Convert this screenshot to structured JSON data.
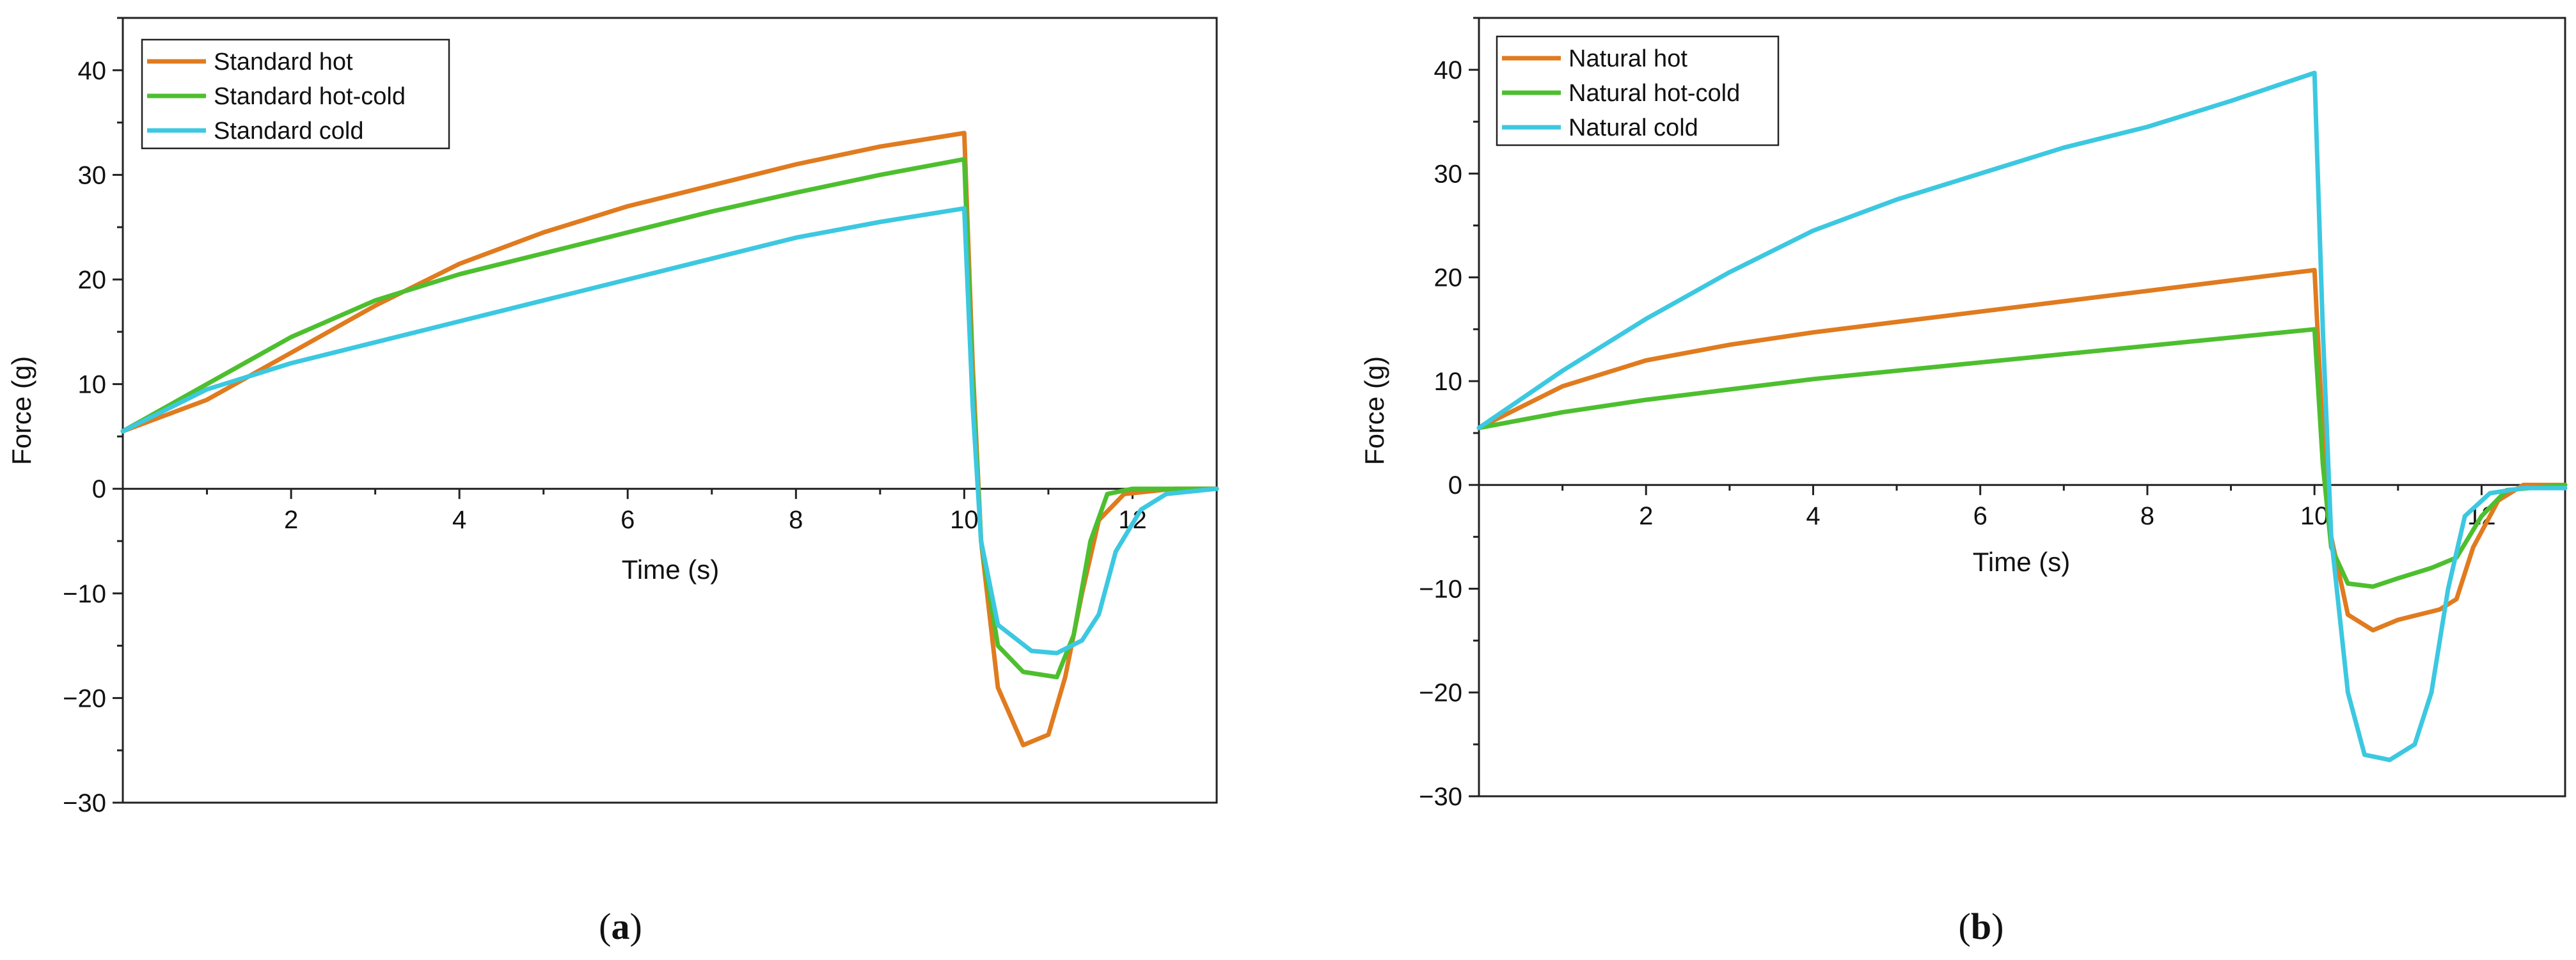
{
  "chart_data": [
    {
      "type": "line",
      "panel": "a",
      "panel_label": {
        "open": "(",
        "letter": "a",
        "close": ")"
      },
      "xlabel": "Time (s)",
      "ylabel": "Force (g)",
      "xlim": [
        0,
        13
      ],
      "ylim": [
        -30,
        45
      ],
      "x_ticks": [
        2,
        4,
        6,
        8,
        10,
        12
      ],
      "y_ticks": [
        -30,
        -20,
        -10,
        0,
        10,
        20,
        30,
        40
      ],
      "legend_position": "top-left",
      "series": [
        {
          "name": "Standard hot",
          "color": "#E07B1F",
          "points": [
            [
              0,
              5.5
            ],
            [
              1,
              8.5
            ],
            [
              2,
              13
            ],
            [
              3,
              17.5
            ],
            [
              4,
              21.5
            ],
            [
              5,
              24.5
            ],
            [
              6,
              27
            ],
            [
              7,
              29
            ],
            [
              8,
              31
            ],
            [
              9,
              32.7
            ],
            [
              10,
              34
            ],
            [
              10.1,
              12
            ],
            [
              10.2,
              -5
            ],
            [
              10.4,
              -19
            ],
            [
              10.7,
              -24.5
            ],
            [
              11,
              -23.5
            ],
            [
              11.2,
              -18
            ],
            [
              11.4,
              -10
            ],
            [
              11.6,
              -3
            ],
            [
              11.9,
              -0.5
            ],
            [
              12.5,
              0
            ],
            [
              13,
              0
            ]
          ]
        },
        {
          "name": "Standard hot-cold",
          "color": "#4DBF2F",
          "points": [
            [
              0,
              5.5
            ],
            [
              1,
              10
            ],
            [
              2,
              14.5
            ],
            [
              3,
              18
            ],
            [
              4,
              20.5
            ],
            [
              5,
              22.5
            ],
            [
              6,
              24.5
            ],
            [
              7,
              26.5
            ],
            [
              8,
              28.3
            ],
            [
              9,
              30
            ],
            [
              10,
              31.5
            ],
            [
              10.1,
              10
            ],
            [
              10.2,
              -5
            ],
            [
              10.4,
              -15
            ],
            [
              10.7,
              -17.5
            ],
            [
              11.1,
              -18
            ],
            [
              11.3,
              -14
            ],
            [
              11.5,
              -5
            ],
            [
              11.7,
              -0.5
            ],
            [
              12,
              0
            ],
            [
              13,
              0
            ]
          ]
        },
        {
          "name": "Standard cold",
          "color": "#3CC8E0",
          "points": [
            [
              0,
              5.5
            ],
            [
              1,
              9.5
            ],
            [
              2,
              12
            ],
            [
              3,
              14
            ],
            [
              4,
              16
            ],
            [
              5,
              18
            ],
            [
              6,
              20
            ],
            [
              7,
              22
            ],
            [
              8,
              24
            ],
            [
              9,
              25.5
            ],
            [
              10,
              26.8
            ],
            [
              10.1,
              8
            ],
            [
              10.2,
              -5
            ],
            [
              10.4,
              -13
            ],
            [
              10.8,
              -15.5
            ],
            [
              11.1,
              -15.7
            ],
            [
              11.4,
              -14.5
            ],
            [
              11.6,
              -12
            ],
            [
              11.8,
              -6
            ],
            [
              12.1,
              -2
            ],
            [
              12.4,
              -0.5
            ],
            [
              13,
              0
            ]
          ]
        }
      ],
      "legend": {
        "entries": [
          "Standard hot",
          "Standard hot-cold",
          "Standard cold"
        ]
      }
    },
    {
      "type": "line",
      "panel": "b",
      "panel_label": {
        "open": "(",
        "letter": "b",
        "close": ")"
      },
      "xlabel": "Time (s)",
      "ylabel": "Force (g)",
      "xlim": [
        0,
        13
      ],
      "ylim": [
        -30,
        45
      ],
      "x_ticks": [
        2,
        4,
        6,
        8,
        10,
        12
      ],
      "y_ticks": [
        -30,
        -20,
        -10,
        0,
        10,
        20,
        30,
        40
      ],
      "legend_position": "top-left",
      "series": [
        {
          "name": "Natural hot",
          "color": "#E07B1F",
          "points": [
            [
              0,
              5.5
            ],
            [
              1,
              9.5
            ],
            [
              2,
              12
            ],
            [
              3,
              13.5
            ],
            [
              4,
              14.7
            ],
            [
              5,
              15.7
            ],
            [
              6,
              16.7
            ],
            [
              7,
              17.7
            ],
            [
              8,
              18.7
            ],
            [
              9,
              19.7
            ],
            [
              10,
              20.7
            ],
            [
              10.1,
              5
            ],
            [
              10.2,
              -5
            ],
            [
              10.4,
              -12.5
            ],
            [
              10.7,
              -14
            ],
            [
              11,
              -13
            ],
            [
              11.5,
              -12
            ],
            [
              11.7,
              -11
            ],
            [
              11.9,
              -6
            ],
            [
              12.2,
              -1.5
            ],
            [
              12.5,
              0
            ],
            [
              13,
              0
            ]
          ]
        },
        {
          "name": "Natural hot-cold",
          "color": "#4DBF2F",
          "points": [
            [
              0,
              5.5
            ],
            [
              1,
              7
            ],
            [
              2,
              8.2
            ],
            [
              3,
              9.2
            ],
            [
              4,
              10.2
            ],
            [
              5,
              11
            ],
            [
              6,
              11.8
            ],
            [
              7,
              12.6
            ],
            [
              8,
              13.4
            ],
            [
              9,
              14.2
            ],
            [
              10,
              15
            ],
            [
              10.1,
              2
            ],
            [
              10.2,
              -6
            ],
            [
              10.4,
              -9.5
            ],
            [
              10.7,
              -9.8
            ],
            [
              11,
              -9
            ],
            [
              11.4,
              -8
            ],
            [
              11.7,
              -7
            ],
            [
              12,
              -3
            ],
            [
              12.3,
              -0.5
            ],
            [
              13,
              0
            ]
          ]
        },
        {
          "name": "Natural cold",
          "color": "#3CC8E0",
          "points": [
            [
              0,
              5.5
            ],
            [
              1,
              11
            ],
            [
              2,
              16
            ],
            [
              3,
              20.5
            ],
            [
              4,
              24.5
            ],
            [
              5,
              27.5
            ],
            [
              6,
              30
            ],
            [
              7,
              32.5
            ],
            [
              8,
              34.5
            ],
            [
              9,
              37
            ],
            [
              10,
              39.7
            ],
            [
              10.1,
              15
            ],
            [
              10.2,
              -5
            ],
            [
              10.4,
              -20
            ],
            [
              10.6,
              -26
            ],
            [
              10.9,
              -26.5
            ],
            [
              11.2,
              -25
            ],
            [
              11.4,
              -20
            ],
            [
              11.6,
              -10
            ],
            [
              11.8,
              -3
            ],
            [
              12.1,
              -0.8
            ],
            [
              12.5,
              -0.3
            ],
            [
              13,
              -0.3
            ]
          ]
        }
      ],
      "legend": {
        "entries": [
          "Natural hot",
          "Natural hot-cold",
          "Natural cold"
        ]
      }
    }
  ]
}
